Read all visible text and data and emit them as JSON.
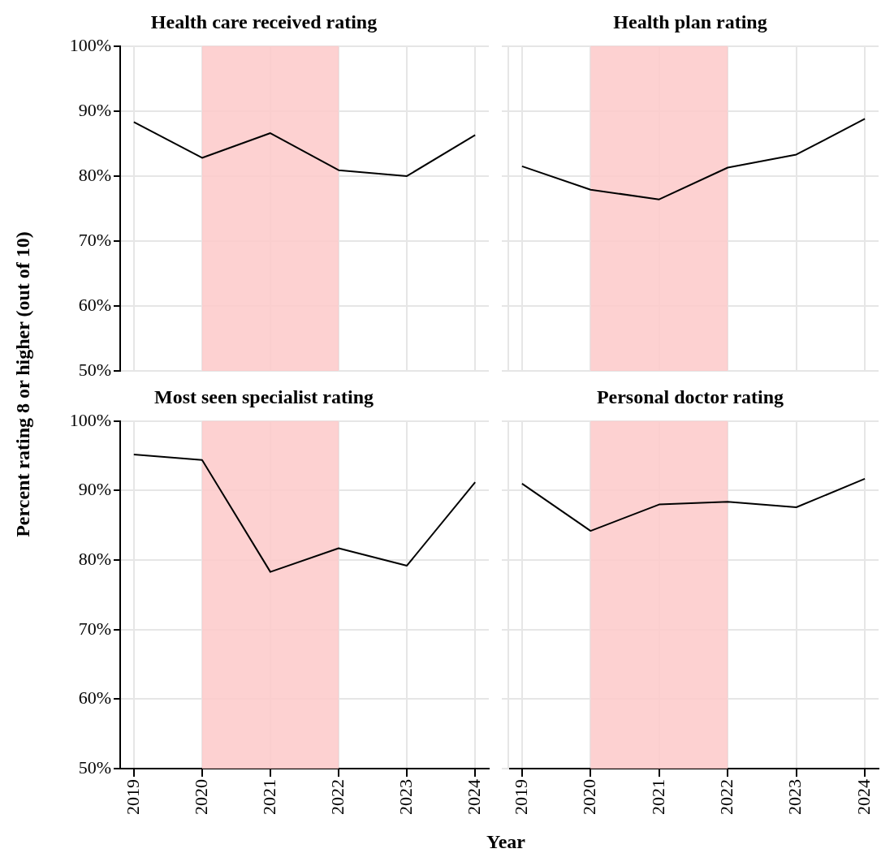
{
  "chart_data": [
    {
      "type": "line",
      "title": "Health care received rating",
      "ylabel": "Percent rating 8 or higher (out of 10)",
      "x": [
        2019,
        2020,
        2021,
        2022,
        2023,
        2024
      ],
      "series": [
        {
          "color": "#000000",
          "values": [
            88.3,
            82.8,
            86.6,
            80.9,
            80.0,
            86.3
          ]
        }
      ],
      "xlim": [
        2018.8,
        2024.2
      ],
      "xticks": [
        {
          "value": 2019,
          "label": null
        },
        {
          "value": 2020,
          "label": null
        },
        {
          "value": 2021,
          "label": null
        },
        {
          "value": 2022,
          "label": null
        },
        {
          "value": 2023,
          "label": null
        },
        {
          "value": 2024,
          "label": null
        }
      ],
      "ylim": [
        50,
        100
      ],
      "yticks": [
        {
          "value": 50,
          "label": "50%"
        },
        {
          "value": 60,
          "label": "60%"
        },
        {
          "value": 70,
          "label": "70%"
        },
        {
          "value": 80,
          "label": "80%"
        },
        {
          "value": 90,
          "label": "90%"
        },
        {
          "value": 100,
          "label": "100%"
        }
      ],
      "bands": [
        {
          "axis": "x",
          "from": 2020,
          "to": 2022,
          "color": "#fdc9c9"
        }
      ],
      "grid": true,
      "legend": false,
      "marker": "none",
      "line_style": "solid",
      "tick_labels": "y"
    },
    {
      "type": "line",
      "title": "Health plan rating",
      "x": [
        2019,
        2020,
        2021,
        2022,
        2023,
        2024
      ],
      "series": [
        {
          "color": "#000000",
          "values": [
            81.5,
            77.9,
            76.4,
            81.3,
            83.3,
            88.8
          ]
        }
      ],
      "xlim": [
        2018.8,
        2024.2
      ],
      "xticks": [
        {
          "value": 2019,
          "label": null
        },
        {
          "value": 2020,
          "label": null
        },
        {
          "value": 2021,
          "label": null
        },
        {
          "value": 2022,
          "label": null
        },
        {
          "value": 2023,
          "label": null
        },
        {
          "value": 2024,
          "label": null
        }
      ],
      "ylim": [
        50,
        100
      ],
      "yticks": [
        {
          "value": 50,
          "label": null
        },
        {
          "value": 60,
          "label": null
        },
        {
          "value": 70,
          "label": null
        },
        {
          "value": 80,
          "label": null
        },
        {
          "value": 90,
          "label": null
        },
        {
          "value": 100,
          "label": null
        }
      ],
      "bands": [
        {
          "axis": "x",
          "from": 2020,
          "to": 2022,
          "color": "#fdc9c9"
        }
      ],
      "grid": true,
      "legend": false,
      "marker": "none",
      "line_style": "solid",
      "tick_labels": false
    },
    {
      "type": "line",
      "title": "Most seen specialist rating",
      "xlabel": "Year",
      "x": [
        2019,
        2020,
        2021,
        2022,
        2023,
        2024
      ],
      "series": [
        {
          "color": "#000000",
          "values": [
            95.2,
            94.4,
            78.3,
            81.7,
            79.2,
            91.2
          ]
        }
      ],
      "xlim": [
        2018.8,
        2024.2
      ],
      "xticks": [
        2019,
        2020,
        2021,
        2022,
        2023,
        2024
      ],
      "ylim": [
        50,
        100
      ],
      "yticks": [
        {
          "value": 50,
          "label": "50%"
        },
        {
          "value": 60,
          "label": "60%"
        },
        {
          "value": 70,
          "label": "70%"
        },
        {
          "value": 80,
          "label": "80%"
        },
        {
          "value": 90,
          "label": "90%"
        },
        {
          "value": 100,
          "label": "100%"
        }
      ],
      "bands": [
        {
          "axis": "x",
          "from": 2020,
          "to": 2022,
          "color": "#fdc9c9"
        }
      ],
      "grid": true,
      "legend": false,
      "marker": "none",
      "line_style": "solid"
    },
    {
      "type": "line",
      "title": "Personal doctor rating",
      "x": [
        2019,
        2020,
        2021,
        2022,
        2023,
        2024
      ],
      "series": [
        {
          "color": "#000000",
          "values": [
            91.0,
            84.2,
            88.0,
            88.4,
            87.6,
            91.7
          ]
        }
      ],
      "xlim": [
        2018.8,
        2024.2
      ],
      "xticks": [
        2019,
        2020,
        2021,
        2022,
        2023,
        2024
      ],
      "ylim": [
        50,
        100
      ],
      "yticks": [
        {
          "value": 50,
          "label": null
        },
        {
          "value": 60,
          "label": null
        },
        {
          "value": 70,
          "label": null
        },
        {
          "value": 80,
          "label": null
        },
        {
          "value": 90,
          "label": null
        },
        {
          "value": 100,
          "label": null
        }
      ],
      "bands": [
        {
          "axis": "x",
          "from": 2020,
          "to": 2022,
          "color": "#fdc9c9"
        }
      ],
      "grid": true,
      "legend": false,
      "marker": "none",
      "line_style": "solid",
      "tick_labels": "x"
    }
  ]
}
